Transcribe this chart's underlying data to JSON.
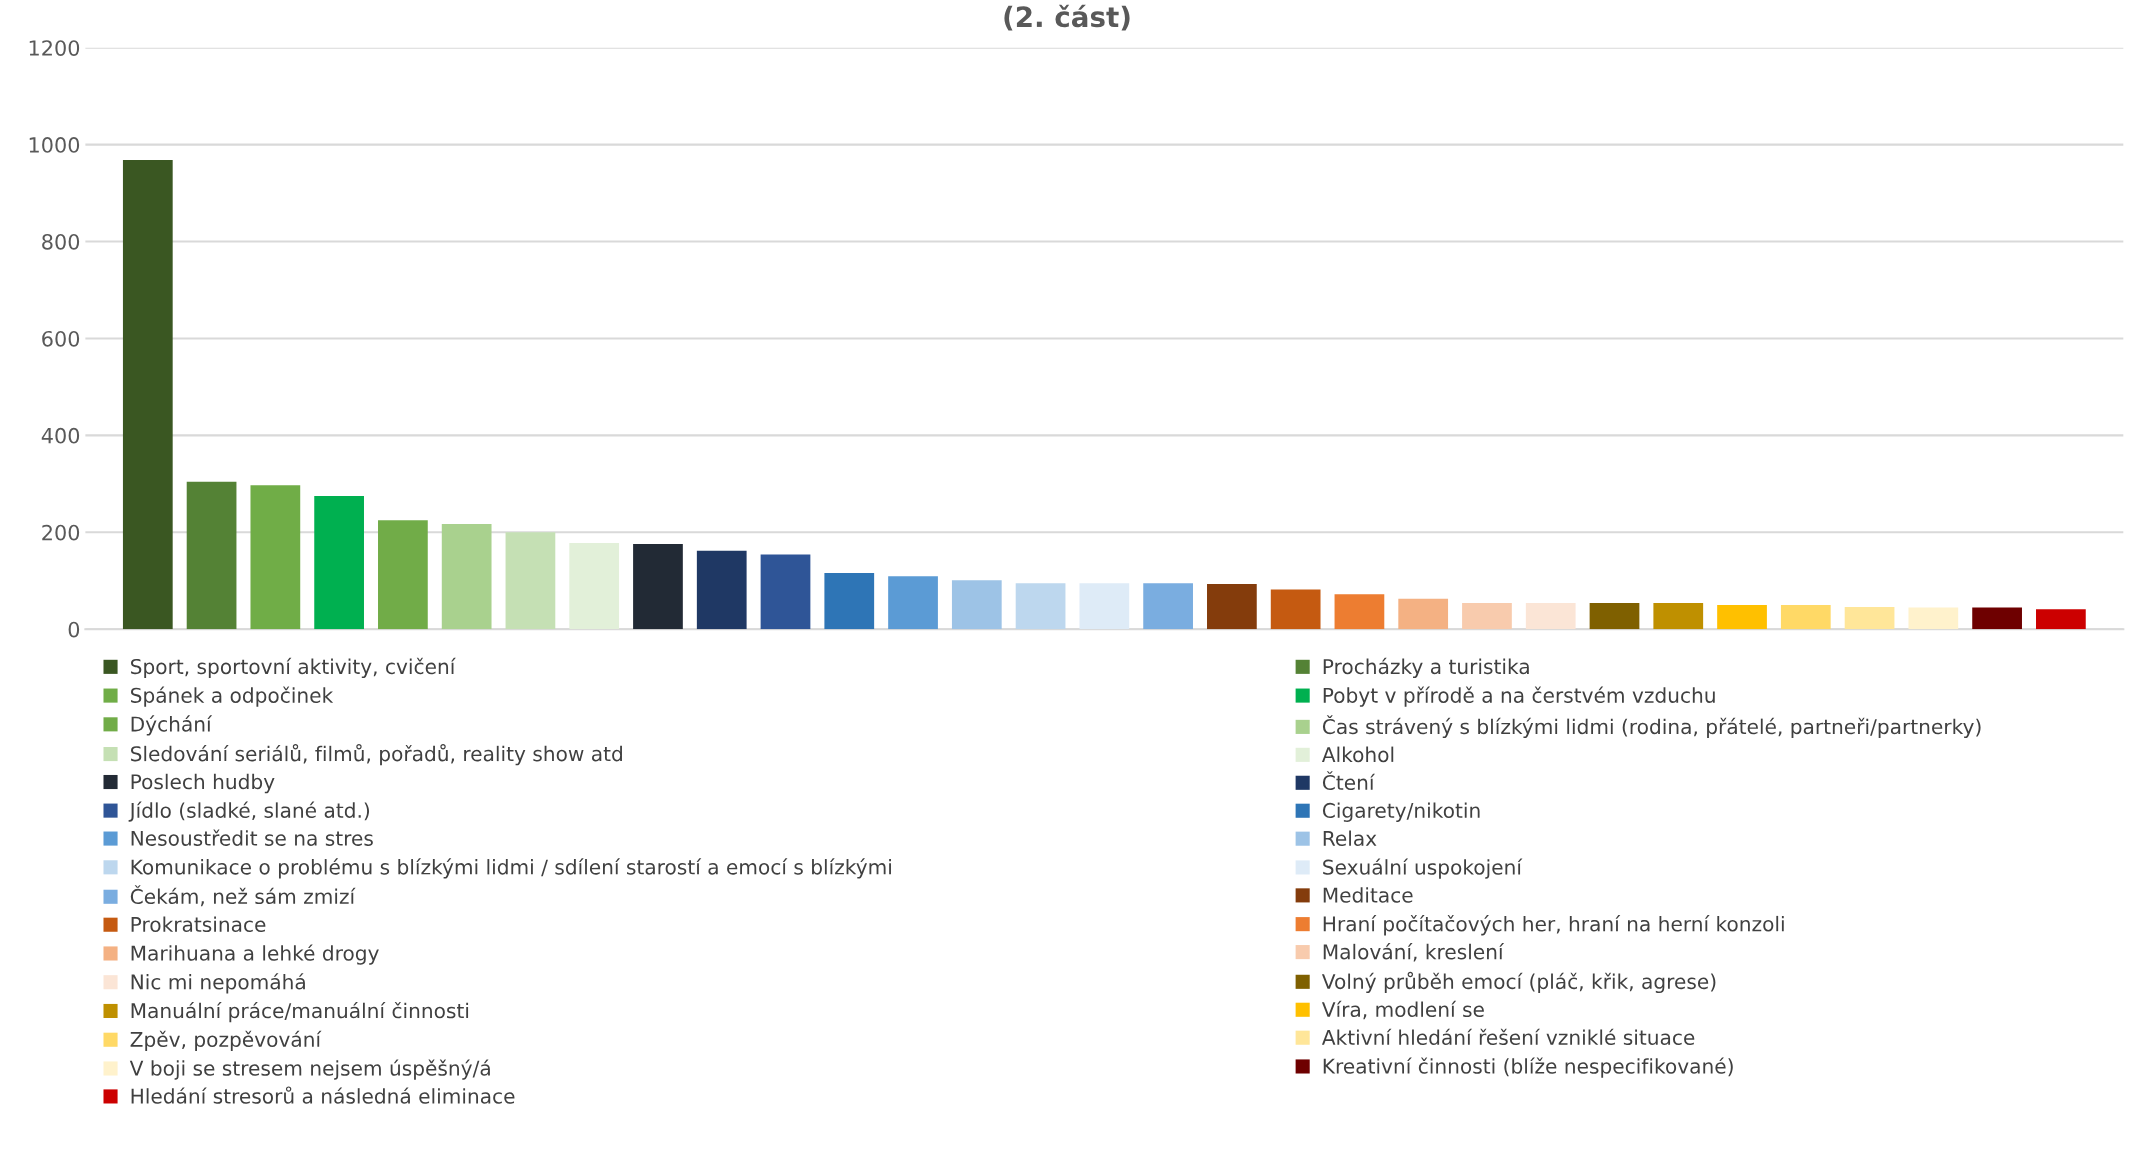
{
  "chart_data": {
    "type": "bar",
    "title": "(2. část)",
    "categories": [
      null
    ],
    "series": [
      {
        "name": "Sport, sportovní aktivity, cvičení",
        "color": "#3a5722",
        "values": [
          968
        ]
      },
      {
        "name": "Procházky a turistika",
        "color": "#548235",
        "values": [
          304
        ]
      },
      {
        "name": "Spánek a odpočinek",
        "color": "#70ad47",
        "values": [
          297
        ]
      },
      {
        "name": "Pobyt v přírodě a na čerstvém vzduchu",
        "color": "#00b050",
        "values": [
          275
        ]
      },
      {
        "name": "Dýchání",
        "color": "#71ac48",
        "values": [
          225
        ]
      },
      {
        "name": "Čas strávený s blízkými lidmi (rodina, přátelé, partneři/partnerky)",
        "color": "#a9d18e",
        "values": [
          217
        ]
      },
      {
        "name": "Sledování seriálů, filmů, pořadů, reality show atd",
        "color": "#c5e0b4",
        "values": [
          200
        ]
      },
      {
        "name": "Alkohol",
        "color": "#e2f0d9",
        "values": [
          178
        ]
      },
      {
        "name": "Poslech hudby",
        "color": "#222a35",
        "values": [
          176
        ]
      },
      {
        "name": "Čtení",
        "color": "#1f3864",
        "values": [
          162
        ]
      },
      {
        "name": "Jídlo (sladké, slané atd.)",
        "color": "#2f5597",
        "values": [
          154
        ]
      },
      {
        "name": "Cigarety/nikotin",
        "color": "#2e75b6",
        "values": [
          116
        ]
      },
      {
        "name": "Nesoustředit se na stres",
        "color": "#5b9bd5",
        "values": [
          109
        ]
      },
      {
        "name": "Relax",
        "color": "#9dc3e6",
        "values": [
          101
        ]
      },
      {
        "name": "Komunikace o problému s blízkými lidmi / sdílení starostí a emocí s blízkými",
        "color": "#bdd7ee",
        "values": [
          95
        ]
      },
      {
        "name": "Sexuální uspokojení",
        "color": "#deebf7",
        "values": [
          95
        ]
      },
      {
        "name": "Čekám, než sám zmizí",
        "color": "#7aade0",
        "values": [
          95
        ]
      },
      {
        "name": "Meditace",
        "color": "#843c0c",
        "values": [
          93
        ]
      },
      {
        "name": "Prokratsinace",
        "color": "#c55a11",
        "values": [
          82
        ]
      },
      {
        "name": "Hraní počítačových her, hraní na herní konzoli",
        "color": "#ed7d31",
        "values": [
          72
        ]
      },
      {
        "name": "Marihuana a lehké drogy",
        "color": "#f4b183",
        "values": [
          63
        ]
      },
      {
        "name": "Malování, kreslení",
        "color": "#f8cbad",
        "values": [
          54
        ]
      },
      {
        "name": "Nic mi nepomáhá",
        "color": "#fbe5d6",
        "values": [
          54
        ]
      },
      {
        "name": "Volný průběh emocí (pláč, křik, agrese)",
        "color": "#7f6000",
        "values": [
          54
        ]
      },
      {
        "name": "Manuální práce/manuální činnosti",
        "color": "#bf9000",
        "values": [
          54
        ]
      },
      {
        "name": "Víra, modlení se",
        "color": "#ffc000",
        "values": [
          50
        ]
      },
      {
        "name": "Zpěv, pozpěvování",
        "color": "#ffd966",
        "values": [
          50
        ]
      },
      {
        "name": "Aktivní hledání řešení vzniklé situace",
        "color": "#ffe699",
        "values": [
          46
        ]
      },
      {
        "name": "V boji se stresem nejsem úspěšný/á",
        "color": "#fff2cc",
        "values": [
          45
        ]
      },
      {
        "name": "Kreativní činnosti (blíže nespecifikované)",
        "color": "#6e0000",
        "values": [
          45
        ]
      },
      {
        "name": "Hledání stresorů a následná eliminace",
        "color": "#cc0000",
        "values": [
          41
        ]
      }
    ],
    "ylim": [
      0,
      1200
    ],
    "yticks": [
      0,
      200,
      400,
      600,
      800,
      1000,
      1200
    ],
    "grid": "y",
    "legend": "bottom",
    "tick_labels": "y"
  }
}
